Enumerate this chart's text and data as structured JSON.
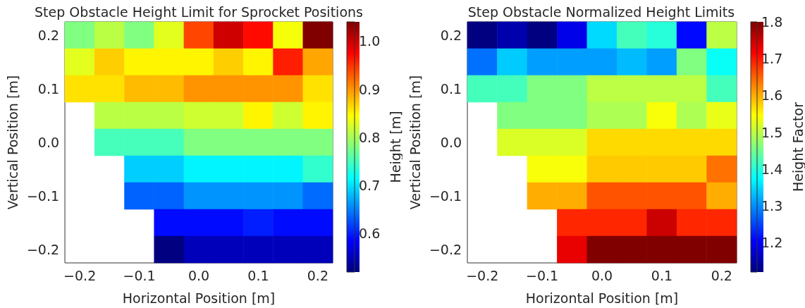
{
  "chart_data": [
    {
      "type": "heatmap",
      "title": "Step Obstacle Height Limit for Sprocket Positions",
      "xlabel": "Horizontal Position [m]",
      "ylabel": "Vertical Position [m]",
      "clabel": "Height [m]",
      "categories": [
        "−0.2",
        null,
        "−0.1",
        null,
        "0.0",
        null,
        "0.1",
        null,
        "0.2"
      ],
      "y_categories": [
        "0.2",
        null,
        "0.1",
        null,
        "0.0",
        null,
        "−0.1",
        null,
        "−0.2"
      ],
      "cells": [
        [
          0.78,
          0.81,
          0.78,
          0.83,
          0.94,
          1.0,
          0.97,
          0.84,
          1.04
        ],
        [
          0.83,
          0.87,
          0.85,
          0.85,
          0.85,
          0.87,
          0.85,
          0.96,
          0.89
        ],
        [
          0.86,
          0.86,
          0.88,
          0.88,
          0.9,
          0.9,
          0.9,
          0.9,
          0.86
        ],
        [
          null,
          0.81,
          0.81,
          0.81,
          0.82,
          0.82,
          0.85,
          0.82,
          0.85
        ],
        [
          null,
          0.75,
          0.75,
          0.75,
          0.78,
          0.78,
          0.78,
          0.78,
          0.78
        ],
        [
          null,
          null,
          0.69,
          0.69,
          0.71,
          0.71,
          0.71,
          0.71,
          0.74
        ],
        [
          null,
          null,
          0.635,
          0.635,
          0.66,
          0.66,
          0.66,
          0.66,
          0.64
        ],
        [
          null,
          null,
          null,
          0.59,
          0.59,
          0.59,
          0.6,
          0.59,
          0.59
        ],
        [
          null,
          null,
          null,
          0.52,
          0.55,
          0.55,
          0.55,
          0.55,
          0.55
        ]
      ],
      "clim": [
        0.52,
        1.04
      ],
      "cticks": [
        0.6,
        0.7,
        0.8,
        0.9,
        {
          "value": 1,
          "label": "1.0"
        }
      ]
    },
    {
      "type": "heatmap",
      "title": "Step Obstacle Normalized Height Limits",
      "xlabel": "Horizontal Position [m]",
      "ylabel": "Vertical Position [m]",
      "clabel": "Height Factor",
      "categories": [
        "−0.2",
        null,
        "−0.1",
        null,
        "0.0",
        null,
        "0.1",
        null,
        "0.2"
      ],
      "y_categories": [
        "0.2",
        null,
        "0.1",
        null,
        "0.0",
        null,
        "−0.1",
        null,
        "−0.2"
      ],
      "cells": [
        [
          1.12,
          1.15,
          1.12,
          1.19,
          1.35,
          1.42,
          1.4,
          1.21,
          1.5
        ],
        [
          1.28,
          1.34,
          1.31,
          1.31,
          1.31,
          1.33,
          1.31,
          1.46,
          1.38
        ],
        [
          1.42,
          1.42,
          1.46,
          1.46,
          1.5,
          1.5,
          1.5,
          1.5,
          1.42
        ],
        [
          null,
          1.46,
          1.46,
          1.46,
          1.49,
          1.49,
          1.54,
          1.49,
          1.53
        ],
        [
          null,
          1.52,
          1.52,
          1.52,
          1.57,
          1.57,
          1.57,
          1.57,
          1.57
        ],
        [
          null,
          null,
          1.54,
          1.54,
          1.58,
          1.58,
          1.58,
          1.58,
          1.64
        ],
        [
          null,
          null,
          1.6,
          1.6,
          1.66,
          1.66,
          1.66,
          1.66,
          1.6
        ],
        [
          null,
          null,
          null,
          1.69,
          1.69,
          1.69,
          1.75,
          1.69,
          1.69
        ],
        [
          null,
          null,
          null,
          1.73,
          1.8,
          1.8,
          1.8,
          1.8,
          1.8
        ]
      ],
      "clim": [
        1.12,
        1.8
      ],
      "cticks": [
        1.2,
        1.3,
        1.4,
        1.5,
        1.6,
        1.7,
        1.8
      ]
    }
  ]
}
